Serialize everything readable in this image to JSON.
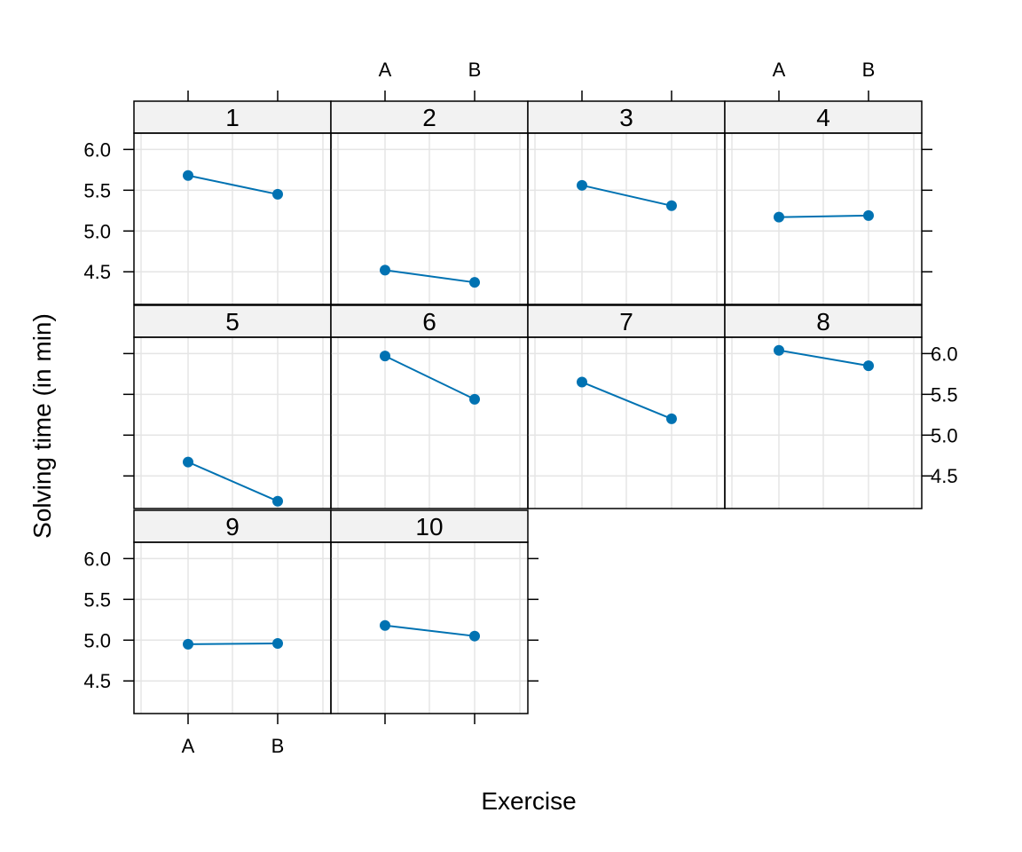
{
  "chart_data": {
    "type": "line",
    "layout": "trellis",
    "xlabel": "Exercise",
    "ylabel": "Solving time (in min)",
    "x_categories": [
      "A",
      "B"
    ],
    "ylim": [
      4.1,
      6.2
    ],
    "yticks": [
      "4.5",
      "5.0",
      "5.5",
      "6.0"
    ],
    "grid": true,
    "colors": {
      "line": "#0072B2",
      "point": "#0072B2",
      "strip_bg": "#f2f2f2",
      "grid": "#e5e5e5"
    },
    "panels": [
      {
        "label": "1",
        "values": [
          5.68,
          5.45
        ]
      },
      {
        "label": "2",
        "values": [
          4.52,
          4.37
        ]
      },
      {
        "label": "3",
        "values": [
          5.56,
          5.31
        ]
      },
      {
        "label": "4",
        "values": [
          5.17,
          5.19
        ]
      },
      {
        "label": "5",
        "values": [
          4.67,
          4.19
        ]
      },
      {
        "label": "6",
        "values": [
          5.97,
          5.44
        ]
      },
      {
        "label": "7",
        "values": [
          5.65,
          5.2
        ]
      },
      {
        "label": "8",
        "values": [
          6.04,
          5.85
        ]
      },
      {
        "label": "9",
        "values": [
          4.95,
          4.96
        ]
      },
      {
        "label": "10",
        "values": [
          5.18,
          5.05
        ]
      }
    ]
  }
}
